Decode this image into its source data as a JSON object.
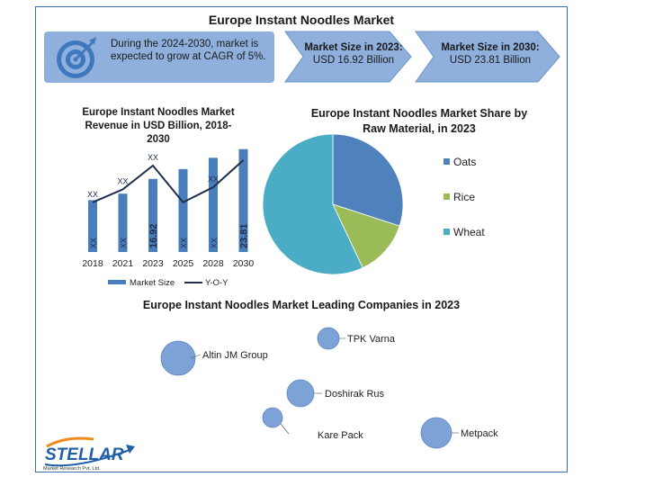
{
  "title": "Europe Instant Noodles Market",
  "cagr_text": "During the 2024-2030, market is expected to grow at CAGR of 5%.",
  "market_2023": {
    "label": "Market Size in 2023:",
    "value": "USD 16.92 Billion"
  },
  "market_2030": {
    "label": "Market Size in 2030:",
    "value": "USD 23.81 Billion"
  },
  "companies_title": "Europe Instant Noodles Market Leading Companies in 2023",
  "companies": [
    "Altin JM Group",
    "TPK Varna",
    "Doshirak Rus",
    "Kare Pack",
    "Metpack"
  ],
  "logo": {
    "name": "STELLAR",
    "tagline": "Market Research Pvt. Ltd."
  },
  "colors": {
    "bar": "#4a7ebb",
    "line": "#1f2d4f",
    "oats": "#4f81bd",
    "rice": "#9bbb59",
    "wheat": "#4bacc6",
    "accent": "#8fb0dc"
  },
  "chart_data": [
    {
      "type": "bar",
      "title": "Europe Instant Noodles Market Revenue in USD Billion, 2018-2030",
      "categories": [
        "2018",
        "2021",
        "2023",
        "2025",
        "2028",
        "2030"
      ],
      "series": [
        {
          "name": "Market Size",
          "values": [
            12.0,
            13.5,
            16.92,
            19.2,
            21.8,
            23.81
          ],
          "labels": [
            "XX",
            "XX",
            "16.92",
            "XX",
            "XX",
            "23.81"
          ]
        },
        {
          "name": "Y-O-Y",
          "type": "line",
          "values": [
            4.6,
            5.8,
            8.0,
            4.6,
            6.0,
            8.5
          ],
          "labels": [
            "XX",
            "XX",
            "XX",
            "",
            "XX",
            ""
          ]
        }
      ],
      "legend": "bottom",
      "grid": false
    },
    {
      "type": "pie",
      "title": "Europe Instant Noodles Market Share by Raw Material, in 2023",
      "categories": [
        "Oats",
        "Rice",
        "Wheat"
      ],
      "values": [
        30,
        13,
        57
      ],
      "legend": "right"
    }
  ]
}
